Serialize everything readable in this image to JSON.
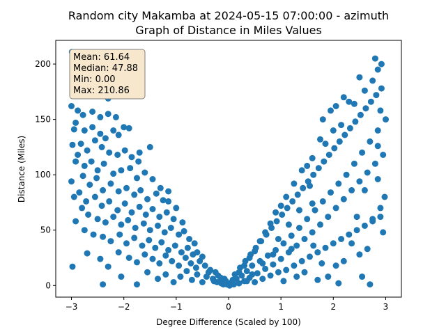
{
  "chart_data": {
    "type": "scatter",
    "title_line1": "Random city Makamba at 2024-05-15 07:00:00  - azimuth",
    "title_line2": "Graph of Distance in Miles Values",
    "xlabel": "Degree Difference (Scaled by 100)",
    "ylabel": "Distance (Miles)",
    "xlim": [
      -3.3,
      3.3
    ],
    "ylim": [
      -10.5,
      221.4
    ],
    "xticks": [
      -3,
      -2,
      -1,
      0,
      1,
      2,
      3
    ],
    "yticks": [
      0,
      50,
      100,
      150,
      200
    ],
    "grid": false,
    "marker_color": "#1f77b4",
    "stats_box": {
      "lines": [
        "Mean: 61.64",
        "Median: 47.88",
        "Min: 0.00",
        "Max: 210.86"
      ],
      "facecolor": "#f6e7cd",
      "edgecolor": "#7f7f7f",
      "placement": "top-left"
    },
    "series": [
      {
        "points": [
          [
            -2.99,
            210.9
          ],
          [
            -2.95,
            208
          ],
          [
            -2.88,
            205
          ],
          [
            -2.85,
            201
          ],
          [
            -2.8,
            198
          ],
          [
            -2.75,
            196
          ],
          [
            -2.68,
            203
          ],
          [
            -2.62,
            196
          ],
          [
            -2.9,
            192
          ],
          [
            -2.83,
            185
          ],
          [
            -2.7,
            188
          ],
          [
            -2.5,
            186
          ],
          [
            -2.3,
            169
          ],
          [
            -3.0,
            162
          ],
          [
            -2.88,
            158
          ],
          [
            -2.78,
            154
          ],
          [
            -2.6,
            157
          ],
          [
            -2.45,
            152
          ],
          [
            -2.3,
            155
          ],
          [
            -2.92,
            147
          ],
          [
            -2.75,
            140
          ],
          [
            -2.6,
            143
          ],
          [
            -2.45,
            137
          ],
          [
            -2.35,
            133
          ],
          [
            -2.2,
            140
          ],
          [
            -2.1,
            136
          ],
          [
            -2.0,
            143
          ],
          [
            -2.95,
            141
          ],
          [
            -2.82,
            128
          ],
          [
            -2.7,
            122
          ],
          [
            -2.55,
            131
          ],
          [
            -2.42,
            125
          ],
          [
            -2.28,
            120
          ],
          [
            -2.12,
            118
          ],
          [
            -1.98,
            122
          ],
          [
            -1.85,
            116
          ],
          [
            -1.72,
            112
          ],
          [
            -2.98,
            127
          ],
          [
            -2.88,
            118
          ],
          [
            -2.75,
            108
          ],
          [
            -2.62,
            112
          ],
          [
            -2.5,
            104
          ],
          [
            -2.38,
            110
          ],
          [
            -2.2,
            101
          ],
          [
            -2.05,
            104
          ],
          [
            -1.88,
            106
          ],
          [
            -1.75,
            97
          ],
          [
            -1.6,
            102
          ],
          [
            -1.45,
            96
          ],
          [
            -2.92,
            112
          ],
          [
            -2.78,
            99
          ],
          [
            -2.65,
            91
          ],
          [
            -2.52,
            97
          ],
          [
            -2.4,
            86
          ],
          [
            -2.25,
            92
          ],
          [
            -2.1,
            85
          ],
          [
            -1.95,
            88
          ],
          [
            -1.8,
            82
          ],
          [
            -1.68,
            86
          ],
          [
            -1.55,
            78
          ],
          [
            -1.38,
            83
          ],
          [
            -1.25,
            77
          ],
          [
            -3.0,
            94
          ],
          [
            -2.85,
            84
          ],
          [
            -2.72,
            76
          ],
          [
            -2.55,
            80
          ],
          [
            -2.42,
            72
          ],
          [
            -2.28,
            76
          ],
          [
            -2.12,
            68
          ],
          [
            -1.98,
            74
          ],
          [
            -1.85,
            66
          ],
          [
            -1.7,
            71
          ],
          [
            -1.58,
            64
          ],
          [
            -1.45,
            69
          ],
          [
            -1.32,
            62
          ],
          [
            -1.18,
            66
          ],
          [
            -1.05,
            60
          ],
          [
            -2.95,
            80
          ],
          [
            -2.8,
            70
          ],
          [
            -2.68,
            64
          ],
          [
            -2.5,
            60
          ],
          [
            -2.35,
            57
          ],
          [
            -2.2,
            62
          ],
          [
            -2.05,
            55
          ],
          [
            -1.92,
            59
          ],
          [
            -1.78,
            52
          ],
          [
            -1.62,
            56
          ],
          [
            -1.5,
            50
          ],
          [
            -1.35,
            54
          ],
          [
            -1.22,
            48
          ],
          [
            -1.1,
            52
          ],
          [
            -0.95,
            46
          ],
          [
            -0.85,
            49
          ],
          [
            -2.92,
            58
          ],
          [
            -2.75,
            50
          ],
          [
            -2.58,
            46
          ],
          [
            -2.4,
            44
          ],
          [
            -2.25,
            40
          ],
          [
            -2.08,
            46
          ],
          [
            -1.95,
            38
          ],
          [
            -1.8,
            43
          ],
          [
            -1.65,
            36
          ],
          [
            -1.52,
            41
          ],
          [
            -1.4,
            34
          ],
          [
            -1.28,
            39
          ],
          [
            -1.15,
            32
          ],
          [
            -1.02,
            36
          ],
          [
            -0.9,
            30
          ],
          [
            -0.78,
            34
          ],
          [
            -0.68,
            28
          ],
          [
            -2.98,
            17
          ],
          [
            -2.7,
            29
          ],
          [
            -2.45,
            24
          ],
          [
            -2.3,
            17
          ],
          [
            -2.1,
            30
          ],
          [
            -1.9,
            25
          ],
          [
            -1.75,
            21
          ],
          [
            -1.6,
            28
          ],
          [
            -1.45,
            24
          ],
          [
            -1.32,
            20
          ],
          [
            -1.2,
            27
          ],
          [
            -1.08,
            22
          ],
          [
            -0.95,
            18
          ],
          [
            -0.82,
            25
          ],
          [
            -0.72,
            20
          ],
          [
            -0.62,
            16
          ],
          [
            -0.55,
            22
          ],
          [
            -2.4,
            1
          ],
          [
            -2.05,
            8
          ],
          [
            -1.75,
            1
          ],
          [
            -1.55,
            12
          ],
          [
            -1.35,
            6
          ],
          [
            -1.2,
            10
          ],
          [
            -1.05,
            3
          ],
          [
            -0.92,
            8
          ],
          [
            -0.8,
            13
          ],
          [
            -0.7,
            5
          ],
          [
            -0.6,
            10
          ],
          [
            -0.5,
            3
          ],
          [
            -0.42,
            8
          ],
          [
            -0.35,
            14
          ],
          [
            -0.28,
            4
          ],
          [
            -0.2,
            9
          ],
          [
            -0.14,
            2
          ],
          [
            -0.08,
            6
          ],
          [
            -0.03,
            1
          ],
          [
            -0.45,
            18
          ],
          [
            -0.38,
            12
          ],
          [
            -0.3,
            6
          ],
          [
            -0.22,
            3
          ],
          [
            -0.15,
            7
          ],
          [
            -0.1,
            1
          ],
          [
            -0.05,
            4
          ],
          [
            -0.6,
            30
          ],
          [
            -0.65,
            38
          ],
          [
            -0.75,
            42
          ],
          [
            -0.88,
            57
          ],
          [
            -1.0,
            70
          ],
          [
            -1.15,
            76
          ],
          [
            -1.3,
            88
          ],
          [
            -1.5,
            125
          ],
          [
            -1.7,
            120
          ],
          [
            -1.9,
            142
          ],
          [
            -2.15,
            152
          ],
          [
            -2.55,
            172
          ],
          [
            -2.4,
            190
          ],
          [
            -1.15,
            85
          ],
          [
            -0.5,
            26
          ],
          [
            -0.25,
            12
          ],
          [
            0.02,
            0
          ],
          [
            0.06,
            3
          ],
          [
            0.1,
            1
          ],
          [
            0.15,
            6
          ],
          [
            0.2,
            2
          ],
          [
            0.25,
            9
          ],
          [
            0.3,
            4
          ],
          [
            0.35,
            13
          ],
          [
            0.4,
            7
          ],
          [
            0.45,
            18
          ],
          [
            0.5,
            3
          ],
          [
            0.55,
            11
          ],
          [
            0.6,
            22
          ],
          [
            0.65,
            6
          ],
          [
            0.7,
            15
          ],
          [
            0.75,
            27
          ],
          [
            0.8,
            9
          ],
          [
            0.85,
            19
          ],
          [
            0.9,
            32
          ],
          [
            0.95,
            12
          ],
          [
            1.0,
            24
          ],
          [
            1.05,
            38
          ],
          [
            1.1,
            14
          ],
          [
            1.15,
            30
          ],
          [
            1.2,
            45
          ],
          [
            1.25,
            18
          ],
          [
            1.3,
            36
          ],
          [
            1.35,
            52
          ],
          [
            1.4,
            22
          ],
          [
            1.45,
            42
          ],
          [
            1.5,
            60
          ],
          [
            1.55,
            26
          ],
          [
            1.6,
            48
          ],
          [
            1.65,
            68
          ],
          [
            1.7,
            30
          ],
          [
            1.75,
            55
          ],
          [
            1.8,
            76
          ],
          [
            1.85,
            34
          ],
          [
            1.9,
            62
          ],
          [
            1.95,
            84
          ],
          [
            2.0,
            38
          ],
          [
            2.05,
            70
          ],
          [
            2.1,
            92
          ],
          [
            2.15,
            42
          ],
          [
            2.2,
            78
          ],
          [
            2.25,
            100
          ],
          [
            2.3,
            46
          ],
          [
            2.35,
            86
          ],
          [
            2.4,
            110
          ],
          [
            2.45,
            50
          ],
          [
            2.5,
            94
          ],
          [
            2.55,
            120
          ],
          [
            2.6,
            54
          ],
          [
            2.65,
            102
          ],
          [
            2.7,
            130
          ],
          [
            2.75,
            58
          ],
          [
            2.8,
            110
          ],
          [
            2.85,
            140
          ],
          [
            2.9,
            62
          ],
          [
            2.95,
            118
          ],
          [
            3.0,
            150
          ],
          [
            0.12,
            10
          ],
          [
            0.22,
            16
          ],
          [
            0.32,
            22
          ],
          [
            0.42,
            28
          ],
          [
            0.52,
            34
          ],
          [
            0.62,
            40
          ],
          [
            0.72,
            46
          ],
          [
            0.82,
            52
          ],
          [
            0.92,
            58
          ],
          [
            1.02,
            64
          ],
          [
            1.12,
            70
          ],
          [
            1.22,
            76
          ],
          [
            1.32,
            82
          ],
          [
            1.42,
            88
          ],
          [
            1.52,
            94
          ],
          [
            1.62,
            100
          ],
          [
            1.72,
            106
          ],
          [
            1.82,
            112
          ],
          [
            1.92,
            118
          ],
          [
            2.02,
            124
          ],
          [
            2.12,
            130
          ],
          [
            2.22,
            136
          ],
          [
            2.32,
            142
          ],
          [
            2.42,
            148
          ],
          [
            2.52,
            154
          ],
          [
            2.62,
            160
          ],
          [
            2.72,
            166
          ],
          [
            2.82,
            172
          ],
          [
            2.92,
            178
          ],
          [
            1.8,
            150
          ],
          [
            1.95,
            158
          ],
          [
            2.05,
            162
          ],
          [
            2.2,
            170
          ],
          [
            2.3,
            166
          ],
          [
            2.4,
            164
          ],
          [
            2.6,
            176
          ],
          [
            2.75,
            185
          ],
          [
            2.85,
            195
          ],
          [
            2.92,
            200
          ],
          [
            2.8,
            205
          ],
          [
            2.5,
            188
          ],
          [
            2.15,
            145
          ],
          [
            2.0,
            140
          ],
          [
            1.85,
            128
          ],
          [
            1.75,
            132
          ],
          [
            1.6,
            115
          ],
          [
            1.5,
            108
          ],
          [
            1.4,
            104
          ],
          [
            1.25,
            92
          ],
          [
            1.1,
            80
          ],
          [
            1.0,
            72
          ],
          [
            0.9,
            66
          ],
          [
            0.8,
            56
          ],
          [
            0.7,
            48
          ],
          [
            0.6,
            40
          ],
          [
            0.5,
            31
          ],
          [
            0.4,
            25
          ],
          [
            0.3,
            18
          ],
          [
            0.2,
            12
          ],
          [
            0.08,
            5
          ],
          [
            1.3,
            8
          ],
          [
            1.45,
            12
          ],
          [
            1.7,
            5
          ],
          [
            2.1,
            2
          ],
          [
            2.55,
            8
          ],
          [
            2.7,
            1
          ],
          [
            2.95,
            48
          ],
          [
            2.9,
            70
          ],
          [
            2.98,
            80
          ],
          [
            2.85,
            96
          ],
          [
            2.75,
            60
          ],
          [
            2.65,
            33
          ],
          [
            2.5,
            28
          ],
          [
            2.35,
            38
          ],
          [
            2.2,
            22
          ],
          [
            2.05,
            18
          ],
          [
            1.9,
            8
          ],
          [
            1.78,
            20
          ],
          [
            1.62,
            36
          ],
          [
            1.55,
            90
          ],
          [
            1.35,
            68
          ],
          [
            1.15,
            55
          ],
          [
            0.95,
            42
          ],
          [
            0.85,
            28
          ],
          [
            0.65,
            20
          ],
          [
            0.45,
            10
          ],
          [
            0.35,
            4
          ],
          [
            1.05,
            4
          ],
          [
            1.2,
            33
          ],
          [
            1.6,
            74
          ],
          [
            2.45,
            62
          ],
          [
            2.6,
            86
          ],
          [
            2.85,
            126
          ],
          [
            2.9,
            158
          ]
        ]
      }
    ]
  }
}
